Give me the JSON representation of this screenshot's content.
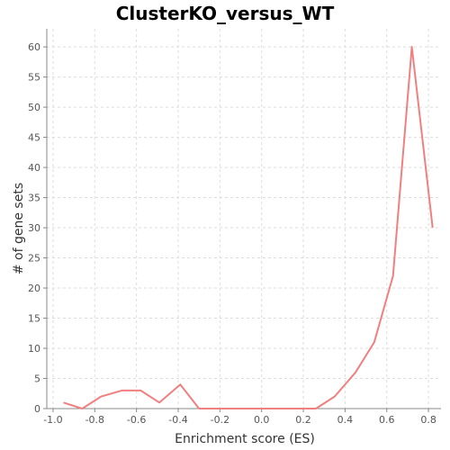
{
  "chart_data": {
    "type": "line",
    "title": "ClusterKO_versus_WT",
    "xlabel": "Enrichment score (ES)",
    "ylabel": "# of gene sets",
    "xlim": [
      -1.03,
      0.86
    ],
    "ylim": [
      0,
      63
    ],
    "x_ticks": [
      -1.0,
      -0.8,
      -0.6,
      -0.4,
      -0.2,
      0.0,
      0.2,
      0.4,
      0.6,
      0.8
    ],
    "x_tick_labels": [
      "-1.0",
      "-0.8",
      "-0.6",
      "-0.4",
      "-0.2",
      "0.0",
      "0.2",
      "0.4",
      "0.6",
      "0.8"
    ],
    "y_ticks": [
      0,
      5,
      10,
      15,
      20,
      25,
      30,
      35,
      40,
      45,
      50,
      55,
      60
    ],
    "y_tick_labels": [
      "0",
      "5",
      "10",
      "15",
      "20",
      "25",
      "30",
      "35",
      "40",
      "45",
      "50",
      "55",
      "60"
    ],
    "grid": true,
    "legend": "none",
    "series": [
      {
        "color": "#f08080",
        "x": [
          -0.95,
          -0.86,
          -0.77,
          -0.67,
          -0.58,
          -0.49,
          -0.39,
          -0.3,
          -0.21,
          -0.11,
          -0.02,
          0.07,
          0.17,
          0.26,
          0.35,
          0.45,
          0.54,
          0.63,
          0.72,
          0.82
        ],
        "y": [
          1,
          0,
          2,
          3,
          3,
          1,
          4,
          0,
          0,
          0,
          0,
          0,
          0,
          0,
          2,
          6,
          11,
          22,
          60,
          30
        ]
      }
    ]
  }
}
